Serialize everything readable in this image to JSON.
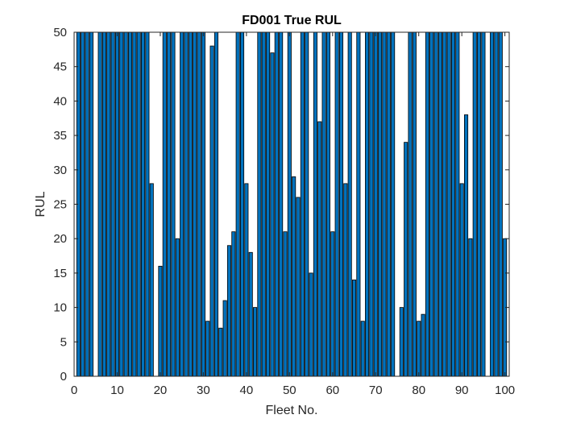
{
  "chart_data": {
    "type": "bar",
    "title": "FD001 True RUL",
    "xlabel": "Fleet No.",
    "ylabel": "RUL",
    "xlim": [
      0,
      101
    ],
    "ylim": [
      0,
      50
    ],
    "xticks": [
      0,
      10,
      20,
      30,
      40,
      50,
      60,
      70,
      80,
      90,
      100
    ],
    "yticks": [
      0,
      5,
      10,
      15,
      20,
      25,
      30,
      35,
      40,
      45,
      50
    ],
    "grid": false,
    "bar_color": "#0072BD",
    "edge_color": "#000000",
    "series": [
      {
        "name": "True RUL",
        "x": [
          1,
          2,
          3,
          4,
          5,
          6,
          7,
          8,
          9,
          10,
          11,
          12,
          13,
          14,
          15,
          16,
          17,
          18,
          19,
          20,
          21,
          22,
          23,
          24,
          25,
          26,
          27,
          28,
          29,
          30,
          31,
          32,
          33,
          34,
          35,
          36,
          37,
          38,
          39,
          40,
          41,
          42,
          43,
          44,
          45,
          46,
          47,
          48,
          49,
          50,
          51,
          52,
          53,
          54,
          55,
          56,
          57,
          58,
          59,
          60,
          61,
          62,
          63,
          64,
          65,
          66,
          67,
          68,
          69,
          70,
          71,
          72,
          73,
          74,
          75,
          76,
          77,
          78,
          79,
          80,
          81,
          82,
          83,
          84,
          85,
          86,
          87,
          88,
          89,
          90,
          91,
          92,
          93,
          94,
          95,
          96,
          97,
          98,
          99,
          100
        ],
        "values": [
          50,
          50,
          50,
          50,
          0,
          50,
          50,
          50,
          50,
          50,
          50,
          50,
          50,
          50,
          50,
          50,
          50,
          28,
          0,
          16,
          50,
          50,
          50,
          20,
          50,
          50,
          50,
          50,
          50,
          50,
          8,
          48,
          50,
          7,
          11,
          19,
          21,
          50,
          50,
          28,
          18,
          10,
          50,
          50,
          50,
          47,
          50,
          50,
          21,
          50,
          29,
          26,
          50,
          50,
          15,
          50,
          37,
          50,
          50,
          21,
          50,
          50,
          28,
          50,
          14,
          50,
          8,
          50,
          50,
          50,
          50,
          50,
          50,
          50,
          0,
          10,
          34,
          50,
          50,
          8,
          9,
          50,
          50,
          50,
          50,
          50,
          50,
          50,
          50,
          28,
          38,
          20,
          50,
          50,
          50,
          0,
          50,
          50,
          50,
          20
        ]
      }
    ]
  }
}
